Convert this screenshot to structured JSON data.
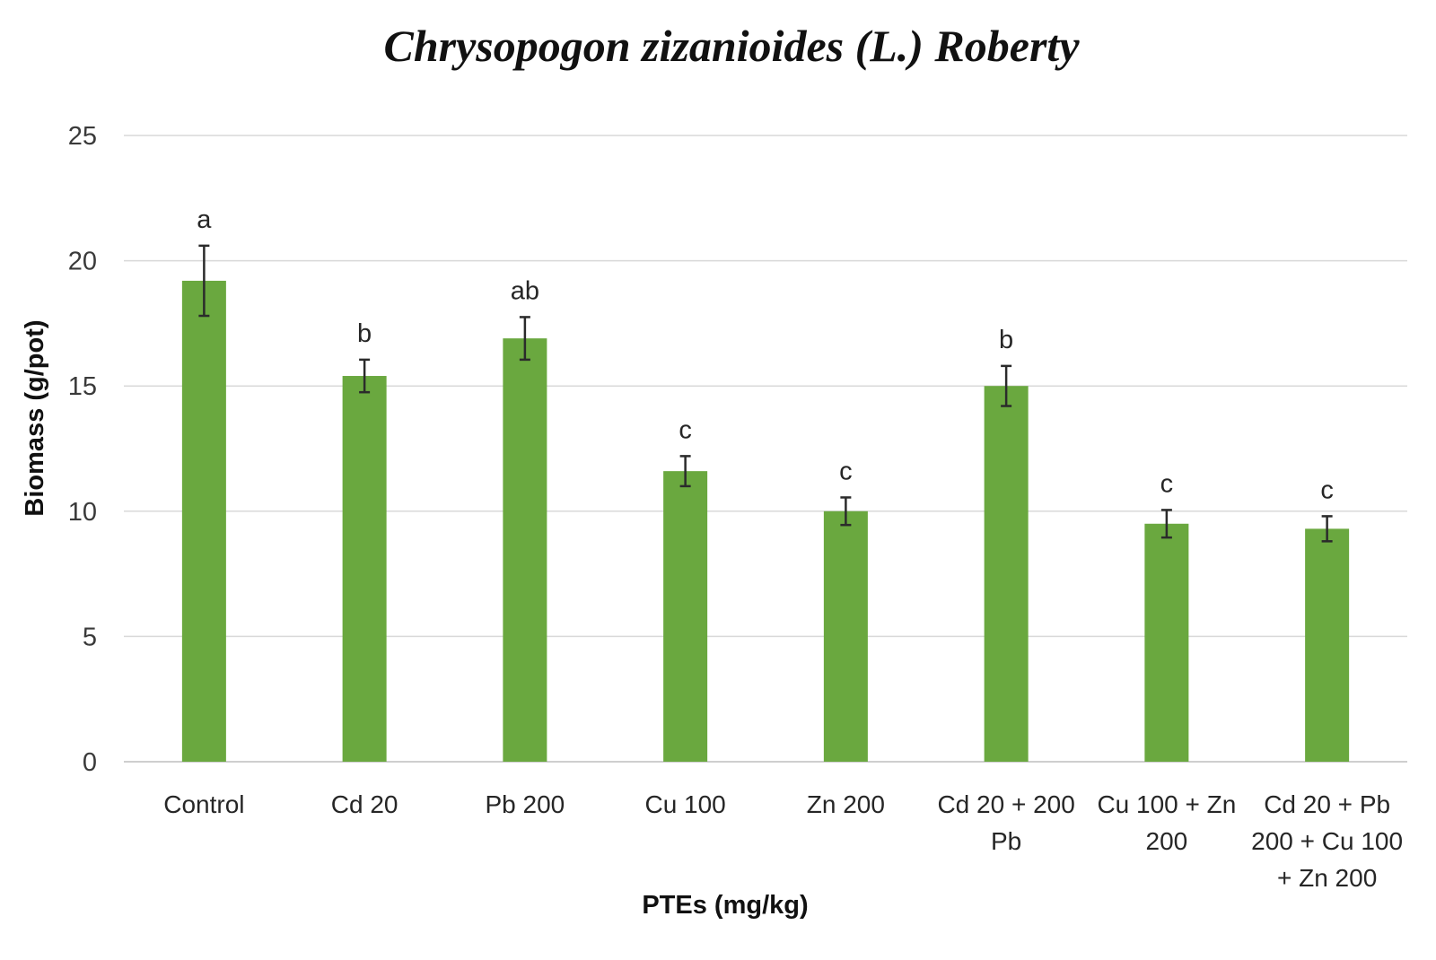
{
  "chart_data": {
    "type": "bar",
    "title": "Chrysopogon zizanioides (L.) Roberty",
    "xlabel": "PTEs (mg/kg)",
    "ylabel": "Biomass (g/pot)",
    "ylim": [
      0,
      25
    ],
    "yticks": [
      0,
      5,
      10,
      15,
      20,
      25
    ],
    "grid": true,
    "legend": "none",
    "categories": [
      [
        "Control"
      ],
      [
        "Cd 20"
      ],
      [
        "Pb 200"
      ],
      [
        "Cu 100"
      ],
      [
        "Zn 200"
      ],
      [
        "Cd 20 + 200",
        "Pb"
      ],
      [
        "Cu 100 + Zn",
        "200"
      ],
      [
        "Cd 20 + Pb",
        "200 + Cu 100",
        "+ Zn 200"
      ]
    ],
    "values": [
      19.2,
      15.4,
      16.9,
      11.6,
      10.0,
      15.0,
      9.5,
      9.3
    ],
    "errors": [
      1.4,
      0.65,
      0.85,
      0.6,
      0.55,
      0.8,
      0.55,
      0.5
    ],
    "significance": [
      "a",
      "b",
      "ab",
      "c",
      "c",
      "b",
      "c",
      "c"
    ],
    "colors": {
      "bar": "#6aa83f",
      "error_bar": "#2b2b2b",
      "grid": "#d9d9d9"
    }
  }
}
